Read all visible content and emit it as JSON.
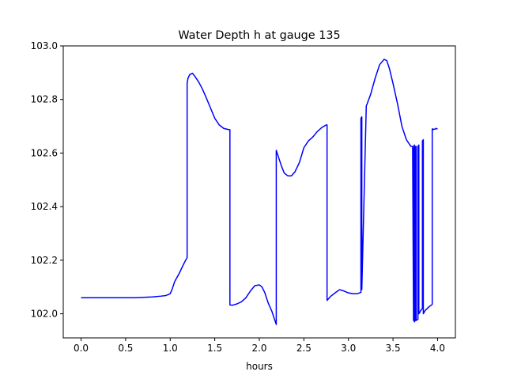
{
  "chart_data": {
    "type": "line",
    "title": "Water Depth h at gauge 135",
    "xlabel": "hours",
    "ylabel": "",
    "xlim": [
      -0.2,
      4.2
    ],
    "ylim": [
      101.91,
      103.0
    ],
    "grid": false,
    "legend": "none",
    "xticks": [
      0.0,
      0.5,
      1.0,
      1.5,
      2.0,
      2.5,
      3.0,
      3.5,
      4.0
    ],
    "xtick_labels": [
      "0.0",
      "0.5",
      "1.0",
      "1.5",
      "2.0",
      "2.5",
      "3.0",
      "3.5",
      "4.0"
    ],
    "yticks": [
      102.0,
      102.2,
      102.4,
      102.6,
      102.8,
      103.0
    ],
    "ytick_labels": [
      "102.0",
      "102.2",
      "102.4",
      "102.6",
      "102.8",
      "103.0"
    ],
    "colors": {
      "line": "#0000ff",
      "axes": "#000000"
    },
    "series": [
      {
        "x": [
          0.0,
          0.2,
          0.4,
          0.6,
          0.8,
          0.9,
          0.95,
          1.0,
          1.02,
          1.05,
          1.1,
          1.15,
          1.19,
          1.19,
          1.2,
          1.22,
          1.25,
          1.28,
          1.32,
          1.36,
          1.4,
          1.45,
          1.5,
          1.55,
          1.6,
          1.65,
          1.67,
          1.67,
          1.7,
          1.75,
          1.8,
          1.85,
          1.9,
          1.95,
          2.0,
          2.03,
          2.06,
          2.1,
          2.14,
          2.19,
          2.19,
          2.22,
          2.25,
          2.28,
          2.32,
          2.36,
          2.4,
          2.45,
          2.5,
          2.55,
          2.6,
          2.65,
          2.7,
          2.75,
          2.76,
          2.76,
          2.8,
          2.85,
          2.9,
          2.95,
          3.0,
          3.05,
          3.1,
          3.14,
          3.14,
          3.15,
          3.15,
          3.2,
          3.25,
          3.3,
          3.35,
          3.4,
          3.43,
          3.46,
          3.5,
          3.55,
          3.6,
          3.65,
          3.7,
          3.72,
          3.73,
          3.73,
          3.74,
          3.74,
          3.75,
          3.75,
          3.76,
          3.76,
          3.78,
          3.78,
          3.79,
          3.79,
          3.8,
          3.81,
          3.83,
          3.83,
          3.84,
          3.84,
          3.86,
          3.9,
          3.94,
          3.94,
          3.95,
          3.95,
          3.98,
          3.98,
          4.0
        ],
        "y": [
          102.06,
          102.06,
          102.06,
          102.06,
          102.063,
          102.066,
          102.068,
          102.075,
          102.09,
          102.12,
          102.15,
          102.185,
          102.21,
          102.86,
          102.88,
          102.893,
          102.898,
          102.885,
          102.865,
          102.84,
          102.81,
          102.77,
          102.73,
          102.705,
          102.692,
          102.688,
          102.687,
          102.033,
          102.032,
          102.037,
          102.045,
          102.06,
          102.085,
          102.105,
          102.108,
          102.1,
          102.08,
          102.04,
          102.01,
          101.96,
          102.61,
          102.58,
          102.55,
          102.525,
          102.515,
          102.515,
          102.53,
          102.565,
          102.62,
          102.645,
          102.66,
          102.68,
          102.695,
          102.705,
          102.705,
          102.05,
          102.065,
          102.078,
          102.09,
          102.085,
          102.078,
          102.075,
          102.075,
          102.08,
          102.73,
          102.735,
          102.09,
          102.775,
          102.82,
          102.88,
          102.93,
          102.95,
          102.945,
          102.915,
          102.86,
          102.785,
          102.7,
          102.65,
          102.625,
          102.625,
          101.975,
          102.62,
          102.63,
          101.97,
          101.975,
          102.625,
          102.625,
          101.975,
          101.98,
          102.625,
          102.63,
          102.0,
          102.005,
          102.012,
          102.02,
          102.645,
          102.65,
          102.0,
          102.012,
          102.025,
          102.035,
          102.69,
          102.69,
          102.688,
          102.69,
          102.692,
          102.69
        ]
      }
    ]
  }
}
